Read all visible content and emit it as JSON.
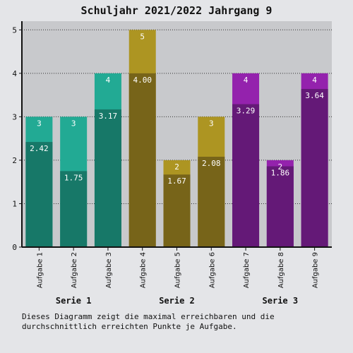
{
  "chart_data": {
    "type": "bar",
    "title": "Schuljahr 2021/2022 Jahrgang 9",
    "xlabel": "",
    "ylabel": "",
    "ylim": [
      0,
      5.2
    ],
    "yticks": [
      0,
      1,
      2,
      3,
      4,
      5
    ],
    "categories": [
      "Aufgabe 1",
      "Aufgabe 2",
      "Aufgabe 3",
      "Aufgabe 4",
      "Aufgabe 5",
      "Aufgabe 6",
      "Aufgabe 7",
      "Aufgabe 8",
      "Aufgabe 9"
    ],
    "series": [
      {
        "values": [
          3,
          3,
          4,
          5,
          2,
          3,
          4,
          2,
          4
        ],
        "labels": [
          "3",
          "3",
          "4",
          "5",
          "2",
          "3",
          "4",
          "2",
          "4"
        ]
      },
      {
        "values": [
          2.42,
          1.75,
          3.17,
          4.0,
          1.67,
          2.08,
          3.29,
          1.86,
          3.64
        ],
        "labels": [
          "2.42",
          "1.75",
          "3.17",
          "4.00",
          "1.67",
          "2.08",
          "3.29",
          "1.86",
          "3.64"
        ]
      }
    ],
    "groups": [
      {
        "label": "Serie 1",
        "categories": [
          0,
          1,
          2
        ],
        "color_max": "#22aa94",
        "color_avg": "#177868"
      },
      {
        "label": "Serie 2",
        "categories": [
          3,
          4,
          5
        ],
        "color_max": "#ad9522",
        "color_avg": "#776419"
      },
      {
        "label": "Serie 3",
        "categories": [
          6,
          7,
          8
        ],
        "color_max": "#9422ad",
        "color_avg": "#641977"
      }
    ],
    "grid": true,
    "plot_background": "#c8c9cc"
  },
  "caption": "Dieses Diagramm zeigt die maximal erreichbaren und die durchschnittlich erreichten Punkte je Aufgabe."
}
